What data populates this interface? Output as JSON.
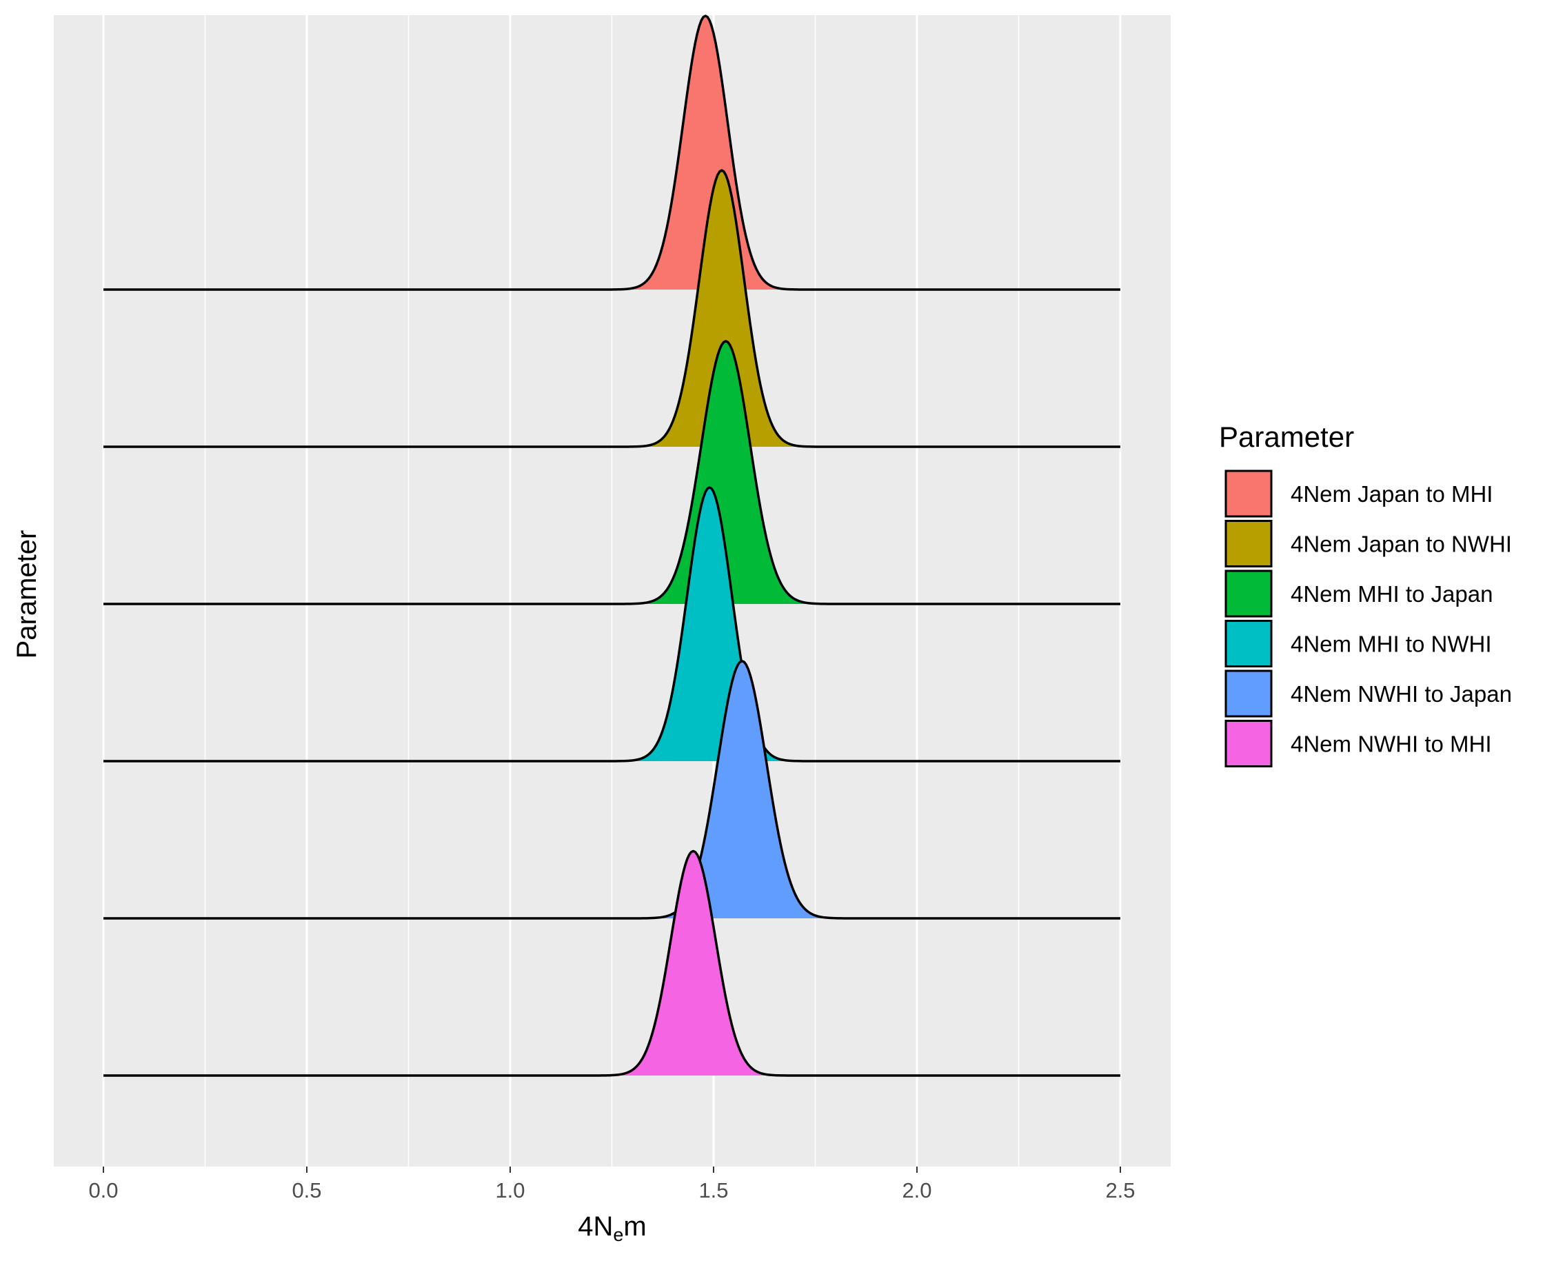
{
  "chart_data": {
    "type": "ridgeline",
    "xlabel": "4N",
    "xlabel_sub": "e",
    "xlabel_suffix": "m",
    "ylabel": "Parameter",
    "xlim": [
      0,
      2.5
    ],
    "x_ticks": [
      0.0,
      0.5,
      1.0,
      1.5,
      2.0,
      2.5
    ],
    "x_tick_labels": [
      "0.0",
      "0.5",
      "1.0",
      "1.5",
      "2.0",
      "2.5"
    ],
    "grid": true,
    "legend": {
      "title": "Parameter",
      "position": "right"
    },
    "series": [
      {
        "name": "4Nem Japan to MHI",
        "color": "#F8766D",
        "peak_x": 1.48,
        "sd": 0.055,
        "relative_height": 1.0
      },
      {
        "name": "4Nem Japan to NWHI",
        "color": "#B79F00",
        "peak_x": 1.52,
        "sd": 0.055,
        "relative_height": 1.01
      },
      {
        "name": "4Nem MHI to Japan",
        "color": "#00BA38",
        "peak_x": 1.53,
        "sd": 0.06,
        "relative_height": 0.96
      },
      {
        "name": "4Nem MHI to NWHI",
        "color": "#00BFC4",
        "peak_x": 1.49,
        "sd": 0.055,
        "relative_height": 1.0
      },
      {
        "name": "4Nem NWHI to Japan",
        "color": "#619CFF",
        "peak_x": 1.57,
        "sd": 0.06,
        "relative_height": 0.94
      },
      {
        "name": "4Nem NWHI to MHI",
        "color": "#F564E3",
        "peak_x": 1.45,
        "sd": 0.055,
        "relative_height": 0.82
      }
    ]
  },
  "style": {
    "panel_background": "#EBEBEB",
    "grid_color": "#FFFFFF",
    "outline_color": "#000000"
  }
}
